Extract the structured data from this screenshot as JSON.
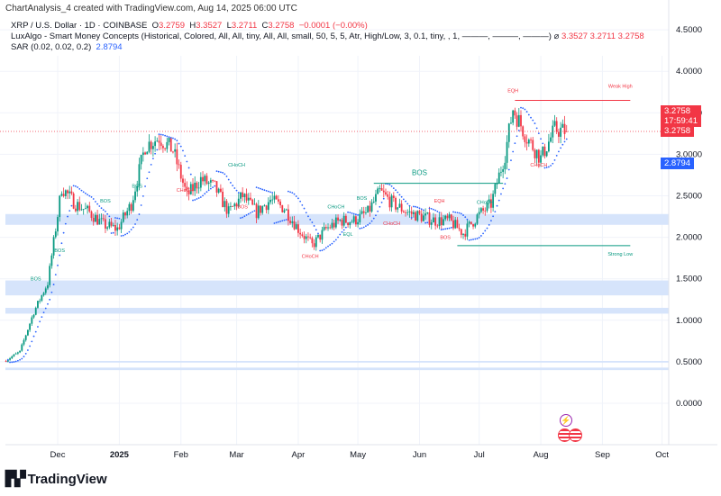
{
  "credit": "ChartAnalysis_4 created with TradingView.com, Aug 14, 2025 06:00 UTC",
  "legend": {
    "symbol": "XRP / U.S. Dollar · 1D · COINBASE",
    "o_label": "O",
    "o": "3.2759",
    "h_label": "H",
    "h": "3.3527",
    "l_label": "L",
    "l": "3.2711",
    "c_label": "C",
    "c": "3.2758",
    "change": "−0.0001 (−0.00%)",
    "indicator1": "LuxAlgo - Smart Money Concepts (Historical, Colored, All, All, tiny, All, All, small, 50, 5, 5, Atr, High/Low, 3, 0.1, tiny, , 1, ———, ———, ———)",
    "indicator1_values": "3.3527  3.2711  3.2758",
    "indicator2": "SAR (0.02, 0.02, 0.2)",
    "indicator2_value": "2.8794"
  },
  "price_tags": {
    "last": "3.2758",
    "countdown": "17:59:41",
    "last2": "3.2758",
    "sar": "2.8794"
  },
  "brand": "TradingView",
  "colors": {
    "up": "#089981",
    "down": "#f23645",
    "sar": "#2962ff",
    "zone": "#d6e4fb",
    "grid": "#f0f3fa"
  },
  "chart_data": {
    "type": "candlestick",
    "y_ticks": [
      "4.5000",
      "4.0000",
      "3.5000",
      "3.0000",
      "2.5000",
      "2.0000",
      "1.5000",
      "1.0000",
      "0.5000",
      "0.0000"
    ],
    "ylim": [
      0,
      4.5
    ],
    "x_ticks": [
      {
        "label": "Dec",
        "date": "2024-12-01"
      },
      {
        "label": "2025",
        "date": "2025-01-01"
      },
      {
        "label": "Feb",
        "date": "2025-02-01"
      },
      {
        "label": "Mar",
        "date": "2025-03-01"
      },
      {
        "label": "Apr",
        "date": "2025-04-01"
      },
      {
        "label": "May",
        "date": "2025-05-01"
      },
      {
        "label": "Jun",
        "date": "2025-06-01"
      },
      {
        "label": "Jul",
        "date": "2025-07-01"
      },
      {
        "label": "Aug",
        "date": "2025-08-01"
      },
      {
        "label": "Sep",
        "date": "2025-09-01"
      },
      {
        "label": "Oct",
        "date": "2025-10-01"
      }
    ],
    "xlim": [
      "2024-11-05",
      "2025-10-05"
    ],
    "approx_closes": [
      [
        "2024-11-05",
        0.52
      ],
      [
        "2024-11-12",
        0.62
      ],
      [
        "2024-11-19",
        1.1
      ],
      [
        "2024-11-26",
        1.45
      ],
      [
        "2024-12-03",
        2.6
      ],
      [
        "2024-12-10",
        2.4
      ],
      [
        "2024-12-17",
        2.3
      ],
      [
        "2024-12-24",
        2.15
      ],
      [
        "2024-12-31",
        2.1
      ],
      [
        "2025-01-07",
        2.4
      ],
      [
        "2025-01-14",
        3.1
      ],
      [
        "2025-01-21",
        3.2
      ],
      [
        "2025-01-28",
        3.05
      ],
      [
        "2025-02-04",
        2.5
      ],
      [
        "2025-02-11",
        2.7
      ],
      [
        "2025-02-18",
        2.6
      ],
      [
        "2025-02-25",
        2.3
      ],
      [
        "2025-03-04",
        2.5
      ],
      [
        "2025-03-11",
        2.3
      ],
      [
        "2025-03-18",
        2.45
      ],
      [
        "2025-03-25",
        2.35
      ],
      [
        "2025-04-01",
        2.1
      ],
      [
        "2025-04-08",
        1.9
      ],
      [
        "2025-04-15",
        2.1
      ],
      [
        "2025-04-22",
        2.2
      ],
      [
        "2025-04-29",
        2.2
      ],
      [
        "2025-05-06",
        2.3
      ],
      [
        "2025-05-12",
        2.55
      ],
      [
        "2025-05-19",
        2.4
      ],
      [
        "2025-05-26",
        2.3
      ],
      [
        "2025-06-02",
        2.25
      ],
      [
        "2025-06-09",
        2.2
      ],
      [
        "2025-06-16",
        2.2
      ],
      [
        "2025-06-23",
        2.05
      ],
      [
        "2025-06-30",
        2.25
      ],
      [
        "2025-07-07",
        2.4
      ],
      [
        "2025-07-14",
        3.0
      ],
      [
        "2025-07-18",
        3.55
      ],
      [
        "2025-07-25",
        3.2
      ],
      [
        "2025-08-01",
        2.95
      ],
      [
        "2025-08-08",
        3.3
      ],
      [
        "2025-08-14",
        3.2758
      ]
    ],
    "last_candle": {
      "open": 3.2759,
      "high": 3.3527,
      "low": 3.2711,
      "close": 3.2758
    },
    "last_price": 3.2758,
    "sar_value": 2.8794,
    "zones": [
      [
        0.4,
        0.43
      ],
      [
        0.49,
        0.51
      ],
      [
        1.08,
        1.15
      ],
      [
        1.3,
        1.48
      ],
      [
        2.15,
        2.28
      ]
    ],
    "annotations": [
      {
        "text": "BOS",
        "date": "2024-11-20",
        "price": 1.48,
        "color": "#089981"
      },
      {
        "text": "BOS",
        "date": "2024-12-02",
        "price": 1.82,
        "color": "#089981"
      },
      {
        "text": "BOS",
        "date": "2024-12-25",
        "price": 2.42,
        "color": "#089981"
      },
      {
        "text": "BOS",
        "date": "2025-01-10",
        "price": 2.6,
        "color": "#089981"
      },
      {
        "text": "CHoCH",
        "date": "2025-02-03",
        "price": 2.55,
        "color": "#f23645"
      },
      {
        "text": "CHoCH",
        "date": "2025-03-01",
        "price": 2.85,
        "color": "#089981"
      },
      {
        "text": "BOS",
        "date": "2025-03-04",
        "price": 2.35,
        "color": "#f23645"
      },
      {
        "text": "CHoCH",
        "date": "2025-04-07",
        "price": 1.75,
        "color": "#f23645"
      },
      {
        "text": "CHoCH",
        "date": "2025-04-20",
        "price": 2.35,
        "color": "#089981"
      },
      {
        "text": "EQL",
        "date": "2025-04-26",
        "price": 2.02,
        "color": "#089981"
      },
      {
        "text": "BOS",
        "date": "2025-05-03",
        "price": 2.45,
        "color": "#089981"
      },
      {
        "text": "BOS",
        "date": "2025-06-01",
        "price": 2.75,
        "color": "#089981"
      },
      {
        "text": "CHoCH",
        "date": "2025-05-18",
        "price": 2.15,
        "color": "#f23645"
      },
      {
        "text": "EQH",
        "date": "2025-06-11",
        "price": 2.42,
        "color": "#f23645"
      },
      {
        "text": "BOS",
        "date": "2025-06-14",
        "price": 1.98,
        "color": "#f23645"
      },
      {
        "text": "CHoCH",
        "date": "2025-07-04",
        "price": 2.4,
        "color": "#089981"
      },
      {
        "text": "EQH",
        "date": "2025-07-18",
        "price": 3.75,
        "color": "#f23645"
      },
      {
        "text": "CHoCH",
        "date": "2025-07-31",
        "price": 2.85,
        "color": "#f23645"
      },
      {
        "text": "Weak High",
        "date": "2025-09-10",
        "price": 3.8,
        "color": "#f23645"
      },
      {
        "text": "Strong Low",
        "date": "2025-09-10",
        "price": 1.78,
        "color": "#089981"
      }
    ],
    "levels": [
      {
        "from": "2025-07-19",
        "to": "2025-09-15",
        "price": 3.65,
        "color": "#f23645"
      },
      {
        "from": "2025-06-20",
        "to": "2025-09-15",
        "price": 1.9,
        "color": "#089981"
      },
      {
        "from": "2025-05-09",
        "to": "2025-07-13",
        "price": 2.65,
        "color": "#089981"
      }
    ]
  }
}
